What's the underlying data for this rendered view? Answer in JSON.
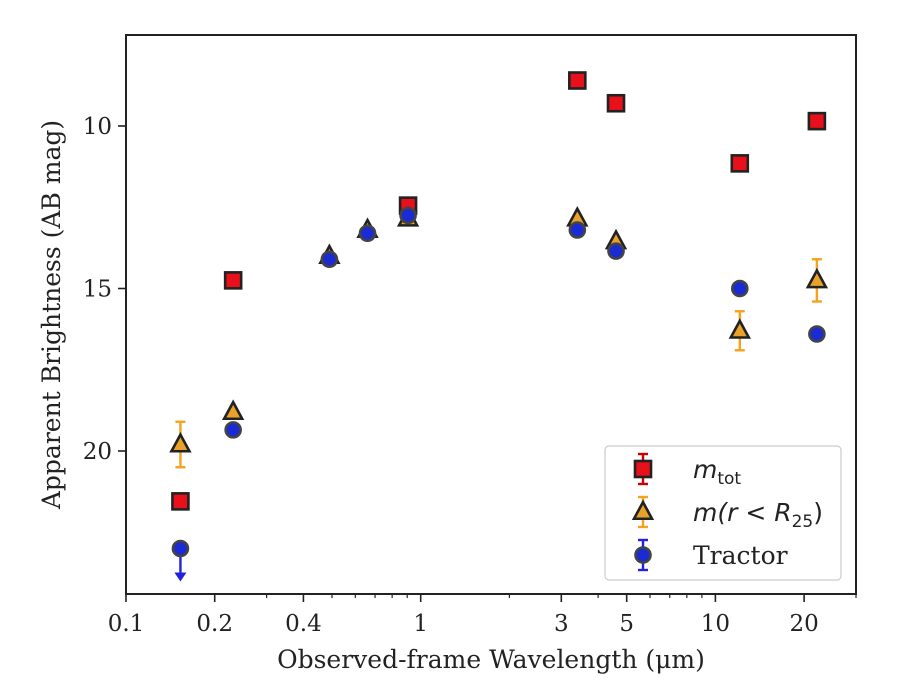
{
  "chart_data": {
    "type": "scatter",
    "title": "",
    "xlabel": "Observed-frame Wavelength (μm)",
    "ylabel": "Apparent Brightness (AB mag)",
    "xscale": "log",
    "xlim": [
      0.1,
      30
    ],
    "ylim": [
      24.4,
      7.2
    ],
    "y_inverted": true,
    "x_ticks": [
      {
        "value": 0.1,
        "label": "0.1"
      },
      {
        "value": 0.2,
        "label": "0.2"
      },
      {
        "value": 0.4,
        "label": "0.4"
      },
      {
        "value": 1,
        "label": "1"
      },
      {
        "value": 3,
        "label": "3"
      },
      {
        "value": 5,
        "label": "5"
      },
      {
        "value": 10,
        "label": "10"
      },
      {
        "value": 20,
        "label": "20"
      }
    ],
    "y_ticks": [
      {
        "value": 10,
        "label": "10"
      },
      {
        "value": 15,
        "label": "15"
      },
      {
        "value": 20,
        "label": "20"
      }
    ],
    "grid": false,
    "legend_position": "lower-right",
    "series": [
      {
        "name": "m_tot",
        "legend_label": {
          "math": "m",
          "sub": "tot"
        },
        "marker": "square",
        "fill": "#e8101a",
        "edge": "#222222",
        "errcolor": "#cc0000",
        "points": [
          {
            "x": 0.153,
            "y": 21.55
          },
          {
            "x": 0.231,
            "y": 14.75
          },
          {
            "x": 0.906,
            "y": 12.45
          },
          {
            "x": 3.4,
            "y": 8.6
          },
          {
            "x": 4.6,
            "y": 9.3
          },
          {
            "x": 12.1,
            "y": 11.15
          },
          {
            "x": 22.1,
            "y": 9.85
          }
        ]
      },
      {
        "name": "m(r < R25)",
        "legend_label": {
          "pre": "m(r < R",
          "sub": "25",
          "post": ")"
        },
        "marker": "triangle",
        "fill": "#e8a22a",
        "edge": "#222222",
        "errcolor": "#f5a21e",
        "points": [
          {
            "x": 0.153,
            "y": 19.8,
            "err": 0.7
          },
          {
            "x": 0.231,
            "y": 18.8,
            "err": 0.1
          },
          {
            "x": 0.49,
            "y": 14.0,
            "err": 0.05
          },
          {
            "x": 0.66,
            "y": 13.2,
            "err": 0.05
          },
          {
            "x": 0.906,
            "y": 12.85,
            "err": 0.05
          },
          {
            "x": 3.4,
            "y": 12.85,
            "err": 0.05
          },
          {
            "x": 4.6,
            "y": 13.55,
            "err": 0.05
          },
          {
            "x": 12.1,
            "y": 16.3,
            "err": 0.6
          },
          {
            "x": 22.1,
            "y": 14.75,
            "err": 0.65
          }
        ]
      },
      {
        "name": "Tractor",
        "legend_label": {
          "text": "Tractor"
        },
        "marker": "circle",
        "fill": "#1a2bd6",
        "edge": "#444444",
        "errcolor": "#2222dd",
        "points": [
          {
            "x": 0.153,
            "y": 23.0,
            "upper_limit": true
          },
          {
            "x": 0.231,
            "y": 19.35,
            "err": 0.05
          },
          {
            "x": 0.49,
            "y": 14.1,
            "err": 0.05
          },
          {
            "x": 0.66,
            "y": 13.3,
            "err": 0.05
          },
          {
            "x": 0.906,
            "y": 12.75,
            "err": 0.05
          },
          {
            "x": 3.4,
            "y": 13.2,
            "err": 0.05
          },
          {
            "x": 4.6,
            "y": 13.85,
            "err": 0.05
          },
          {
            "x": 12.1,
            "y": 15.0,
            "err": 0.05
          },
          {
            "x": 22.1,
            "y": 16.4,
            "err": 0.05
          }
        ]
      }
    ]
  }
}
